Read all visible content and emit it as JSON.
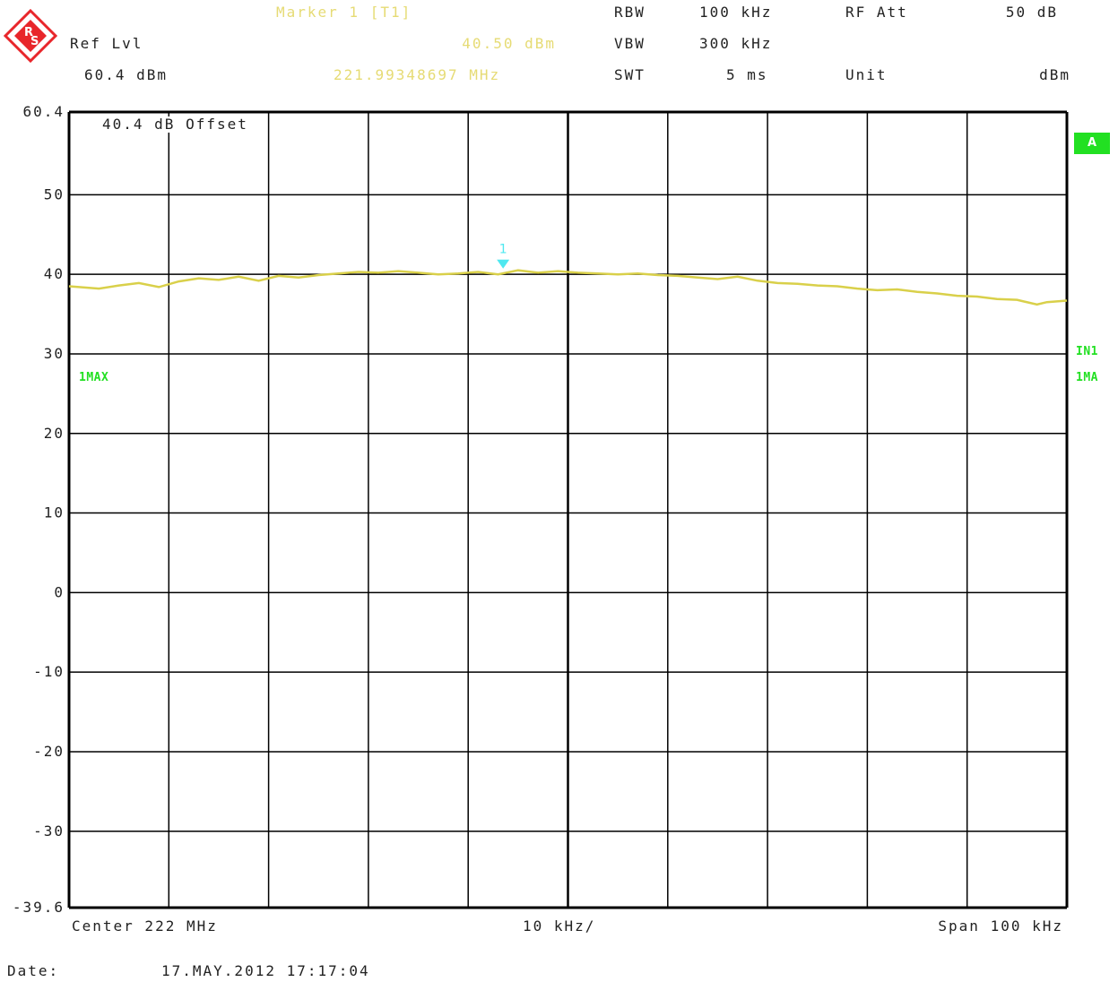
{
  "header": {
    "marker_title": "Marker 1 [T1]",
    "ref_lvl_label": "Ref Lvl",
    "ref_lvl_value": "60.4 dBm",
    "marker_level": "40.50 dBm",
    "marker_freq": "221.99348697 MHz",
    "rbw_label": "RBW",
    "rbw_value": "100 kHz",
    "vbw_label": "VBW",
    "vbw_value": "300 kHz",
    "swt_label": "SWT",
    "swt_value": "5 ms",
    "rfatt_label": "RF Att",
    "rfatt_value": "50 dB",
    "unit_label": "Unit",
    "unit_value": "dBm"
  },
  "offset_label": "40.4 dB Offset",
  "trace_label_left": "1MAX",
  "side_labels": {
    "a": "A",
    "in1": "IN1",
    "ma": "1MA"
  },
  "footer": {
    "center": "Center 222 MHz",
    "div": "10 kHz/",
    "span": "Span 100 kHz",
    "date_label": "Date:",
    "date_value": "17.MAY.2012  17:17:04"
  },
  "colors": {
    "trace": "#d9d04a",
    "marker": "#4fe8f0",
    "green": "#22e022",
    "grid": "#000000"
  },
  "chart_data": {
    "type": "line",
    "x_unit": "kHz offset from center",
    "xlim": [
      -50,
      50
    ],
    "ylim": [
      -39.6,
      60.4
    ],
    "y_ticks": [
      "60.4",
      "50",
      "40",
      "30",
      "20",
      "10",
      "0",
      "-10",
      "-20",
      "-30",
      "-39.6"
    ],
    "y_tick_values": [
      60.4,
      50,
      40,
      30,
      20,
      10,
      0,
      -10,
      -20,
      -30,
      -39.6
    ],
    "marker": {
      "label": "1",
      "x": -6.5,
      "y": 40.5
    },
    "series": [
      {
        "x": [
          -50,
          -47,
          -45,
          -43,
          -41,
          -39,
          -37,
          -35,
          -33,
          -31,
          -29,
          -27,
          -25,
          -23,
          -21,
          -19,
          -17,
          -15,
          -13,
          -11,
          -9,
          -7,
          -5,
          -3,
          -1,
          1,
          3,
          5,
          7,
          9,
          11,
          13,
          15,
          17,
          19,
          21,
          23,
          25,
          27,
          29,
          31,
          33,
          35,
          37,
          39,
          41,
          43,
          45,
          47,
          48,
          50
        ],
        "y": [
          38.5,
          38.2,
          38.6,
          38.9,
          38.4,
          39.1,
          39.5,
          39.3,
          39.7,
          39.2,
          39.8,
          39.6,
          39.9,
          40.1,
          40.3,
          40.2,
          40.4,
          40.2,
          40.0,
          40.1,
          40.3,
          40.0,
          40.5,
          40.2,
          40.4,
          40.2,
          40.1,
          40.0,
          40.1,
          39.9,
          39.8,
          39.6,
          39.4,
          39.7,
          39.2,
          38.9,
          38.8,
          38.6,
          38.5,
          38.2,
          38.0,
          38.1,
          37.8,
          37.6,
          37.3,
          37.2,
          36.9,
          36.8,
          36.2,
          36.5,
          36.7
        ]
      }
    ]
  }
}
